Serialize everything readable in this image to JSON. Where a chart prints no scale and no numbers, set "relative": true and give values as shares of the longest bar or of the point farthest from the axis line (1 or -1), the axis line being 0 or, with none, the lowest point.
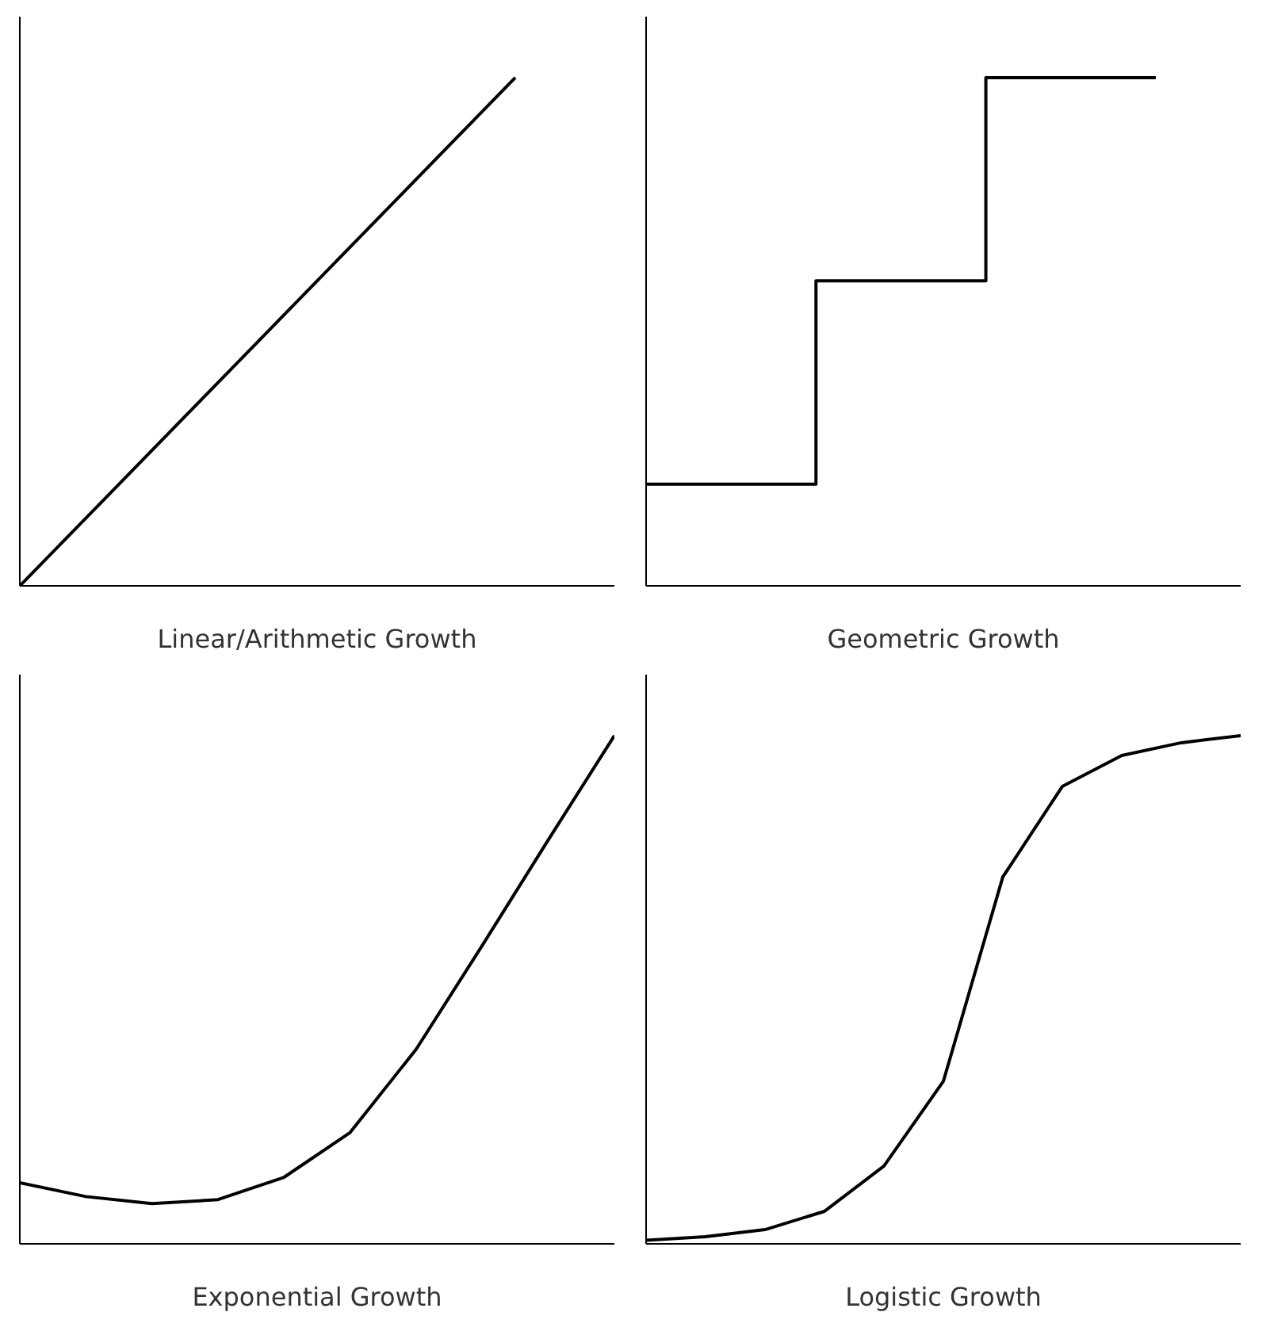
{
  "chart_data": [
    {
      "type": "line",
      "relative": true,
      "xlabel": "Linear/Arithmetic Growth",
      "categories": [
        null,
        null,
        null,
        null,
        null,
        null,
        null
      ],
      "series": [
        {
          "color": "#000000",
          "values": [
            0,
            0.2,
            0.4,
            0.6,
            0.8,
            1.0,
            null
          ]
        }
      ],
      "grid": false,
      "tick_labels": false
    },
    {
      "type": "step",
      "relative": true,
      "xlabel": "Geometric Growth",
      "categories": [
        null,
        null,
        null,
        null
      ],
      "series": [
        {
          "color": "#000000",
          "values": [
            0.2,
            0.6,
            1.0,
            1.0
          ]
        }
      ],
      "grid": false,
      "tick_labels": false
    },
    {
      "type": "line",
      "relative": true,
      "xlabel": "Exponential Growth",
      "categories": [
        null,
        null,
        null,
        null,
        null,
        null,
        null,
        null,
        null,
        null
      ],
      "series": [
        {
          "color": "#000000",
          "values": [
            0.12,
            0.093,
            0.079,
            0.087,
            0.131,
            0.219,
            0.383,
            0.587,
            0.795,
            1.0
          ]
        }
      ],
      "grid": false,
      "tick_labels": false
    },
    {
      "type": "line",
      "relative": true,
      "xlabel": "Logistic Growth",
      "categories": [
        null,
        null,
        null,
        null,
        null,
        null,
        null,
        null,
        null,
        null,
        null
      ],
      "series": [
        {
          "color": "#000000",
          "values": [
            0.007,
            0.014,
            0.028,
            0.064,
            0.153,
            0.32,
            0.722,
            0.9,
            0.961,
            0.986,
            1.0
          ]
        }
      ],
      "grid": false,
      "tick_labels": false
    }
  ]
}
